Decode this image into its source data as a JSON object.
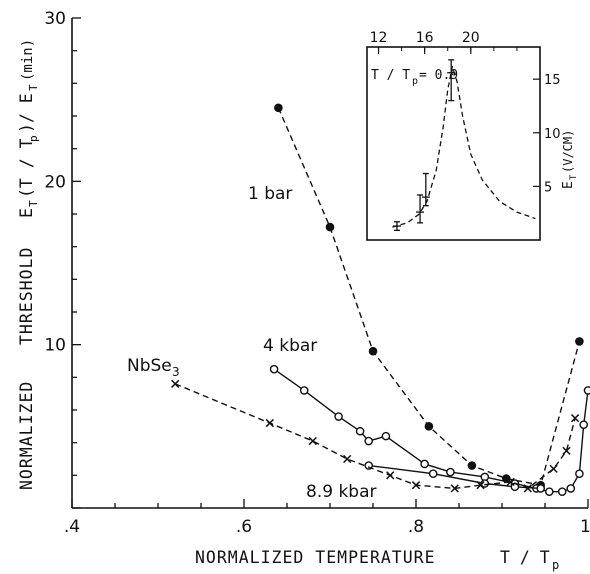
{
  "chart_data": {
    "type": "line",
    "xlabel_text": "NORMALIZED  TEMPERATURE",
    "xlabel_symbol": "T / T",
    "xlabel_sub": "p",
    "ylabel_word1": "NORMALIZED",
    "ylabel_word2": "THRESHOLD",
    "ylabel_expr": "E",
    "ylabel_expr_sub1": "T",
    "ylabel_expr_mid": "(T / T",
    "ylabel_expr_sub2": "p",
    "ylabel_expr_tail": ")/ E",
    "ylabel_expr_sub3": "T",
    "ylabel_expr_end": "(min)",
    "xlim": [
      0.4,
      1.0
    ],
    "ylim": [
      0,
      30
    ],
    "x_ticks": [
      {
        "value": 0.4,
        "label": ".4"
      },
      {
        "value": 0.6,
        "label": ".6"
      },
      {
        "value": 0.8,
        "label": ".8"
      },
      {
        "value": 1.0,
        "label": "1.0"
      }
    ],
    "y_ticks": [
      {
        "value": 10,
        "label": "10"
      },
      {
        "value": 20,
        "label": "20"
      },
      {
        "value": 30,
        "label": "30"
      }
    ],
    "annotations": {
      "material": "NbSe",
      "material_sub": "3",
      "s1": "1 bar",
      "s2": "4 kbar",
      "s3": "8.9 kbar"
    },
    "series": [
      {
        "name": "1 bar",
        "marker": "filled-circle",
        "style": "dashed",
        "x": [
          0.64,
          0.7,
          0.75,
          0.815,
          0.865,
          0.905,
          0.945,
          0.99
        ],
        "y": [
          24.5,
          17.2,
          9.6,
          5.0,
          2.6,
          1.8,
          1.4,
          10.2
        ]
      },
      {
        "name": "4 kbar",
        "marker": "open-circle",
        "style": "solid",
        "x": [
          0.635,
          0.67,
          0.71,
          0.735,
          0.745,
          0.765,
          0.81,
          0.84,
          0.88,
          0.915,
          0.94,
          0.955,
          0.97,
          0.98,
          0.99,
          0.995,
          1.0
        ],
        "y": [
          8.5,
          7.2,
          5.6,
          4.7,
          4.1,
          4.4,
          2.7,
          2.2,
          1.9,
          1.5,
          1.2,
          1.0,
          1.0,
          1.2,
          2.1,
          5.1,
          7.2
        ]
      },
      {
        "name": "8.9 kbar",
        "marker": "open-circle",
        "style": "solid",
        "x": [
          0.745,
          0.82,
          0.88,
          0.915,
          0.945
        ],
        "y": [
          2.6,
          2.1,
          1.5,
          1.3,
          1.2
        ]
      },
      {
        "name": "NbSe3",
        "marker": "cross",
        "style": "dashed",
        "x": [
          0.52,
          0.63,
          0.68,
          0.72,
          0.77,
          0.8,
          0.845,
          0.875,
          0.91,
          0.93,
          0.96,
          0.975,
          0.985
        ],
        "y": [
          7.6,
          5.2,
          4.1,
          3.0,
          2.0,
          1.4,
          1.2,
          1.4,
          1.6,
          1.2,
          2.4,
          3.5,
          5.5
        ]
      }
    ],
    "inset": {
      "condition": "T / T",
      "condition_sub": "p",
      "condition_value": " = 0.9",
      "ylabel": "E",
      "ylabel_sub": "T",
      "ylabel_unit": "(V/CM)",
      "xlim": [
        11,
        26
      ],
      "ylim": [
        0,
        18
      ],
      "x_ticks": [
        {
          "value": 12,
          "label": "12"
        },
        {
          "value": 16,
          "label": "16"
        },
        {
          "value": 20,
          "label": "20"
        }
      ],
      "y_ticks": [
        {
          "value": 5,
          "label": "5"
        },
        {
          "value": 10,
          "label": "10"
        },
        {
          "value": 15,
          "label": "15"
        }
      ],
      "curve_x": [
        13.2,
        14.5,
        15.5,
        16.2,
        17.0,
        17.6,
        18.0,
        18.4,
        18.8,
        19.3,
        20.0,
        21.0,
        22.5,
        24.0,
        25.6
      ],
      "curve_y": [
        1.2,
        1.6,
        2.4,
        3.6,
        6.5,
        10.5,
        14.0,
        16.2,
        14.8,
        11.5,
        8.0,
        5.6,
        3.6,
        2.6,
        2.0
      ],
      "points": [
        {
          "x": 13.6,
          "y": 1.3,
          "lo": 0.9,
          "hi": 1.7
        },
        {
          "x": 15.6,
          "y": 2.6,
          "lo": 1.6,
          "hi": 4.2
        },
        {
          "x": 16.1,
          "y": 4.0,
          "lo": 3.2,
          "hi": 6.2
        },
        {
          "x": 18.3,
          "y": 15.6,
          "lo": 13.0,
          "hi": 16.8
        }
      ]
    }
  }
}
